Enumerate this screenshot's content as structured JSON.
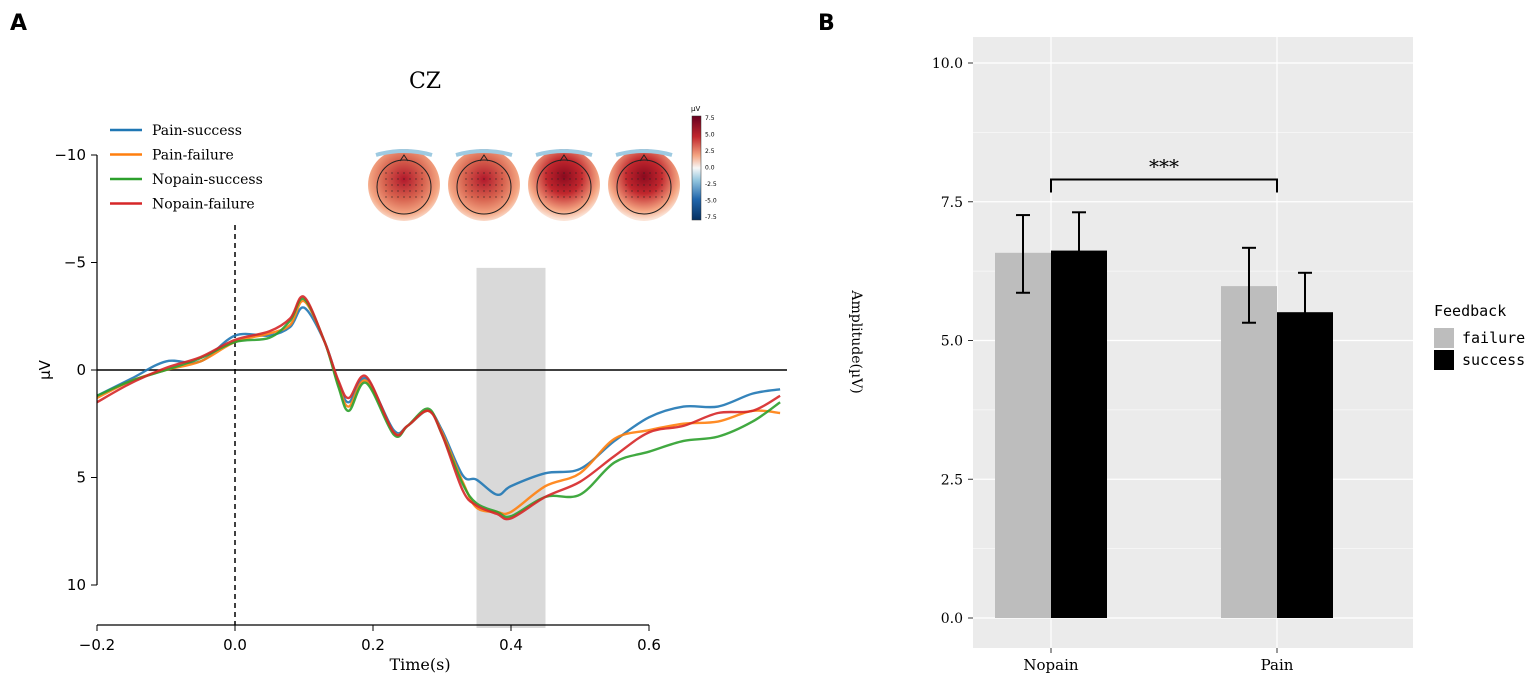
{
  "panel_labels": [
    "A",
    "B"
  ],
  "chart_data": [
    {
      "type": "line",
      "title": "CZ",
      "xlabel": "Time(s)",
      "ylabel": "µV",
      "y_inverted": true,
      "xlim": [
        -0.2,
        0.8
      ],
      "ylim": [
        -12,
        12
      ],
      "xticks": [
        -0.2,
        0.0,
        0.2,
        0.4,
        0.6
      ],
      "xtick_labels": [
        "−0.2",
        "0.0",
        "0.2",
        "0.4",
        "0.6"
      ],
      "yticks": [
        -10,
        -5,
        0,
        5,
        10
      ],
      "ytick_labels": [
        "−10",
        "−5",
        "0",
        "5",
        "10"
      ],
      "legend_position": "top-left",
      "shaded_window": [
        0.35,
        0.45
      ],
      "stimulus_onset": 0.0,
      "x": [
        -0.2,
        -0.15,
        -0.1,
        -0.05,
        0,
        0.05,
        0.08,
        0.1,
        0.13,
        0.15,
        0.165,
        0.19,
        0.23,
        0.25,
        0.28,
        0.3,
        0.33,
        0.35,
        0.38,
        0.4,
        0.45,
        0.5,
        0.55,
        0.6,
        0.65,
        0.7,
        0.75,
        0.79
      ],
      "series": [
        {
          "name": "Pain-success",
          "color": "#1f77b4",
          "values": [
            1.2,
            0.4,
            -0.4,
            -0.4,
            -1.6,
            -1.6,
            -2.0,
            -2.9,
            -1.3,
            0.6,
            1.5,
            0.4,
            2.8,
            2.6,
            1.9,
            2.8,
            4.9,
            5.1,
            5.8,
            5.4,
            4.8,
            4.6,
            3.3,
            2.2,
            1.7,
            1.7,
            1.1,
            0.9
          ]
        },
        {
          "name": "Pain-failure",
          "color": "#ff7f0e",
          "values": [
            1.3,
            0.5,
            0,
            -0.4,
            -1.3,
            -1.7,
            -2.1,
            -3.2,
            -1.3,
            0.7,
            1.7,
            0.5,
            2.9,
            2.6,
            1.9,
            2.9,
            5.2,
            6.4,
            6.6,
            6.6,
            5.4,
            4.8,
            3.2,
            2.8,
            2.5,
            2.4,
            1.9,
            2.0
          ]
        },
        {
          "name": "Nopain-success",
          "color": "#2ca02c",
          "values": [
            1.2,
            0.5,
            0,
            -0.55,
            -1.3,
            -1.5,
            -2.3,
            -3.3,
            -1.3,
            0.8,
            1.9,
            0.6,
            3.0,
            2.6,
            1.8,
            3.0,
            5.3,
            6.2,
            6.6,
            6.8,
            5.9,
            5.8,
            4.3,
            3.8,
            3.3,
            3.1,
            2.4,
            1.5
          ]
        },
        {
          "name": "Nopain-failure",
          "color": "#d62728",
          "values": [
            1.5,
            0.6,
            -0.1,
            -0.6,
            -1.4,
            -1.8,
            -2.4,
            -3.4,
            -1.3,
            0.5,
            1.3,
            0.3,
            2.9,
            2.6,
            1.9,
            3.0,
            5.6,
            6.3,
            6.7,
            6.9,
            5.9,
            5.2,
            4.0,
            2.9,
            2.6,
            2.0,
            1.9,
            1.2
          ]
        }
      ],
      "topomap": {
        "count": 4,
        "colorbar_label": "µV",
        "colorbar_ticks": [
          "7.5",
          "5.0",
          "2.5",
          "0.0",
          "-2.5",
          "-5.0",
          "-7.5"
        ]
      }
    },
    {
      "type": "bar",
      "xlabel": "",
      "ylabel": "Amplitude(µV)",
      "categories": [
        "Nopain",
        "Pain"
      ],
      "ylim": [
        -0.54,
        10.47
      ],
      "yticks": [
        0,
        2.5,
        5,
        7.5,
        10
      ],
      "ytick_labels": [
        "0.0",
        "2.5",
        "5.0",
        "7.5",
        "10.0"
      ],
      "legend_title": "Feedback",
      "legend_position": "right",
      "series": [
        {
          "name": "failure",
          "color": "#bdbdbd",
          "values": [
            6.58,
            5.98
          ],
          "err_low": [
            5.86,
            5.32
          ],
          "err_high": [
            7.26,
            6.67
          ]
        },
        {
          "name": "success",
          "color": "#000000",
          "values": [
            6.62,
            5.51
          ],
          "err_low": [
            5.93,
            4.8
          ],
          "err_high": [
            7.31,
            6.22
          ]
        }
      ],
      "significance": {
        "label": "***",
        "between": [
          "Nopain",
          "Pain"
        ],
        "y": 7.9
      }
    }
  ]
}
